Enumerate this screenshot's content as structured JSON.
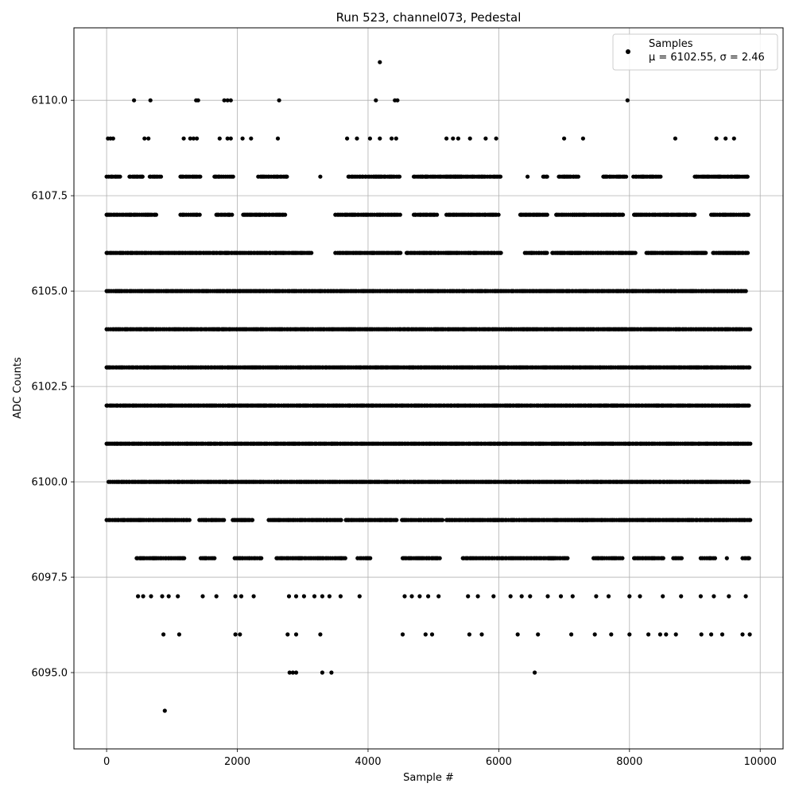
{
  "chart_data": {
    "type": "scatter",
    "title": "Run 523, channel073, Pedestal",
    "xlabel": "Sample #",
    "ylabel": "ADC Counts",
    "xlim": [
      -500,
      10350
    ],
    "ylim": [
      6093.0,
      6111.9
    ],
    "xticks": [
      0,
      2000,
      4000,
      6000,
      8000,
      10000
    ],
    "xtick_labels": [
      "0",
      "2000",
      "4000",
      "6000",
      "8000",
      "10000"
    ],
    "yticks": [
      6095.0,
      6097.5,
      6100.0,
      6102.5,
      6105.0,
      6107.5,
      6110.0
    ],
    "ytick_labels": [
      "6095.0",
      "6097.5",
      "6100.0",
      "6102.5",
      "6105.0",
      "6107.5",
      "6110.0"
    ],
    "grid": true,
    "legend_position": "top-right",
    "marker_color": "#000000",
    "series": [
      {
        "name": "Samples",
        "stats_label": "μ = 6102.55, σ = 2.46",
        "mean": 6102.55,
        "sigma": 2.46,
        "points": [
          [
            4180,
            6111
          ],
          [
            890,
            6094
          ],
          [
            6550,
            6095
          ],
          [
            2800,
            6095
          ],
          [
            2850,
            6095
          ],
          [
            2900,
            6095
          ],
          [
            3300,
            6095
          ],
          [
            3440,
            6095
          ],
          [
            420,
            6110
          ],
          [
            670,
            6110
          ],
          [
            1370,
            6110
          ],
          [
            1400,
            6110
          ],
          [
            1800,
            6110
          ],
          [
            1850,
            6110
          ],
          [
            1900,
            6110
          ],
          [
            2640,
            6110
          ],
          [
            4120,
            6110
          ],
          [
            4410,
            6110
          ],
          [
            4450,
            6110
          ],
          [
            7970,
            6110
          ],
          [
            870,
            6096
          ],
          [
            1110,
            6096
          ],
          [
            1970,
            6096
          ],
          [
            2040,
            6096
          ],
          [
            2770,
            6096
          ],
          [
            2900,
            6096
          ],
          [
            3270,
            6096
          ],
          [
            4530,
            6096
          ],
          [
            4880,
            6096
          ],
          [
            4980,
            6096
          ],
          [
            5550,
            6096
          ],
          [
            5740,
            6096
          ],
          [
            6290,
            6096
          ],
          [
            6600,
            6096
          ],
          [
            7110,
            6096
          ],
          [
            7470,
            6096
          ],
          [
            7720,
            6096
          ],
          [
            8000,
            6096
          ],
          [
            8290,
            6096
          ],
          [
            8470,
            6096
          ],
          [
            8560,
            6096
          ],
          [
            8710,
            6096
          ],
          [
            9100,
            6096
          ],
          [
            9250,
            6096
          ],
          [
            9420,
            6096
          ],
          [
            9730,
            6096
          ],
          [
            9840,
            6096
          ],
          [
            20,
            6109
          ],
          [
            60,
            6109
          ],
          [
            100,
            6109
          ],
          [
            580,
            6109
          ],
          [
            640,
            6109
          ],
          [
            1180,
            6109
          ],
          [
            1280,
            6109
          ],
          [
            1330,
            6109
          ],
          [
            1380,
            6109
          ],
          [
            1730,
            6109
          ],
          [
            1850,
            6109
          ],
          [
            1900,
            6109
          ],
          [
            2080,
            6109
          ],
          [
            2210,
            6109
          ],
          [
            2620,
            6109
          ],
          [
            3680,
            6109
          ],
          [
            3830,
            6109
          ],
          [
            4030,
            6109
          ],
          [
            4180,
            6109
          ],
          [
            4360,
            6109
          ],
          [
            4430,
            6109
          ],
          [
            5200,
            6109
          ],
          [
            5300,
            6109
          ],
          [
            5380,
            6109
          ],
          [
            5560,
            6109
          ],
          [
            5800,
            6109
          ],
          [
            5960,
            6109
          ],
          [
            7000,
            6109
          ],
          [
            7290,
            6109
          ],
          [
            8700,
            6109
          ],
          [
            9330,
            6109
          ],
          [
            9470,
            6109
          ],
          [
            9600,
            6109
          ],
          [
            480,
            6097
          ],
          [
            560,
            6097
          ],
          [
            680,
            6097
          ],
          [
            850,
            6097
          ],
          [
            950,
            6097
          ],
          [
            1090,
            6097
          ],
          [
            1470,
            6097
          ],
          [
            1680,
            6097
          ],
          [
            1970,
            6097
          ],
          [
            2060,
            6097
          ],
          [
            2250,
            6097
          ],
          [
            2790,
            6097
          ],
          [
            2900,
            6097
          ],
          [
            3020,
            6097
          ],
          [
            3180,
            6097
          ],
          [
            3300,
            6097
          ],
          [
            3410,
            6097
          ],
          [
            3580,
            6097
          ],
          [
            3870,
            6097
          ],
          [
            4560,
            6097
          ],
          [
            4670,
            6097
          ],
          [
            4790,
            6097
          ],
          [
            4920,
            6097
          ],
          [
            5080,
            6097
          ],
          [
            5530,
            6097
          ],
          [
            5680,
            6097
          ],
          [
            5920,
            6097
          ],
          [
            6180,
            6097
          ],
          [
            6350,
            6097
          ],
          [
            6480,
            6097
          ],
          [
            6750,
            6097
          ],
          [
            6950,
            6097
          ],
          [
            7130,
            6097
          ],
          [
            7490,
            6097
          ],
          [
            7680,
            6097
          ],
          [
            8000,
            6097
          ],
          [
            8160,
            6097
          ],
          [
            8510,
            6097
          ],
          [
            8790,
            6097
          ],
          [
            9090,
            6097
          ],
          [
            9290,
            6097
          ],
          [
            9520,
            6097
          ],
          [
            9780,
            6097
          ]
        ],
        "bands": [
          {
            "y": 6108,
            "segments": [
              [
                0,
                220
              ],
              [
                350,
                560
              ],
              [
                660,
                840
              ],
              [
                1130,
                1440
              ],
              [
                1650,
                1940
              ],
              [
                2320,
                2780
              ],
              [
                3270,
                3280
              ],
              [
                3700,
                4500
              ],
              [
                4700,
                5440
              ],
              [
                5200,
                6040
              ],
              [
                6440,
                6450
              ],
              [
                6680,
                6750
              ],
              [
                6920,
                7230
              ],
              [
                7600,
                7960
              ],
              [
                8060,
                8480
              ],
              [
                9000,
                9820
              ]
            ]
          },
          {
            "y": 6107,
            "segments": [
              [
                0,
                760
              ],
              [
                1130,
                1450
              ],
              [
                1680,
                1940
              ],
              [
                2090,
                2740
              ],
              [
                3500,
                4500
              ],
              [
                4700,
                5060
              ],
              [
                5200,
                6000
              ],
              [
                6330,
                6760
              ],
              [
                6880,
                7200
              ],
              [
                7130,
                7900
              ],
              [
                8070,
                9020
              ],
              [
                9250,
                9820
              ]
            ]
          },
          {
            "y": 6106,
            "segments": [
              [
                0,
                1080
              ],
              [
                1100,
                3160
              ],
              [
                3500,
                4500
              ],
              [
                4590,
                6040
              ],
              [
                6400,
                6740
              ],
              [
                6820,
                7230
              ],
              [
                7090,
                8100
              ],
              [
                8260,
                9180
              ],
              [
                9280,
                9820
              ]
            ]
          },
          {
            "y": 6105,
            "segments": [
              [
                0,
                9790
              ]
            ]
          },
          {
            "y": 6104,
            "segments": [
              [
                0,
                9850
              ]
            ]
          },
          {
            "y": 6103,
            "segments": [
              [
                0,
                9850
              ]
            ]
          },
          {
            "y": 6102,
            "segments": [
              [
                0,
                9850
              ]
            ]
          },
          {
            "y": 6101,
            "segments": [
              [
                0,
                9850
              ]
            ]
          },
          {
            "y": 6100,
            "segments": [
              [
                30,
                9850
              ]
            ]
          },
          {
            "y": 6099,
            "segments": [
              [
                0,
                1270
              ],
              [
                1420,
                1810
              ],
              [
                1930,
                2260
              ],
              [
                2480,
                3600
              ],
              [
                3660,
                4450
              ],
              [
                4520,
                5150
              ],
              [
                5200,
                6000
              ],
              [
                5930,
                7360
              ],
              [
                7240,
                9850
              ]
            ]
          },
          {
            "y": 6098,
            "segments": [
              [
                460,
                1190
              ],
              [
                1440,
                1660
              ],
              [
                1960,
                2370
              ],
              [
                2600,
                3670
              ],
              [
                3840,
                4050
              ],
              [
                4530,
                5100
              ],
              [
                5450,
                6870
              ],
              [
                6760,
                7060
              ],
              [
                7450,
                7900
              ],
              [
                8070,
                8530
              ],
              [
                8670,
                8800
              ],
              [
                9090,
                9340
              ],
              [
                9490,
                9500
              ],
              [
                9730,
                9850
              ]
            ]
          }
        ]
      }
    ]
  },
  "legend": {
    "label": "Samples",
    "stats": "μ = 6102.55, σ = 2.46"
  }
}
